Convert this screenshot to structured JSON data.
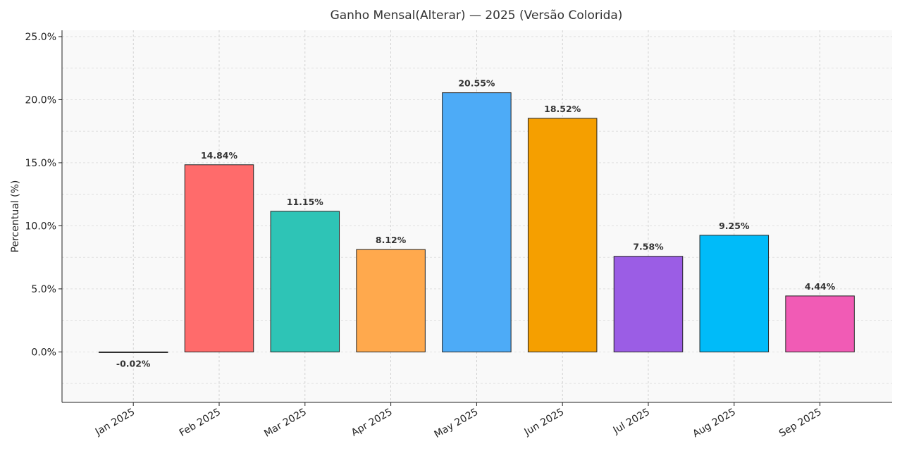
{
  "chart_data": {
    "type": "bar",
    "title": "Ganho Mensal(Alterar) — 2025 (Versão Colorida)",
    "xlabel": "",
    "ylabel": "Percentual (%)",
    "categories": [
      "Jan 2025",
      "Feb 2025",
      "Mar 2025",
      "Apr 2025",
      "May 2025",
      "Jun 2025",
      "Jul 2025",
      "Aug 2025",
      "Sep 2025"
    ],
    "values": [
      -0.02,
      14.84,
      11.15,
      8.12,
      20.55,
      18.52,
      7.58,
      9.25,
      4.44
    ],
    "data_labels": [
      "-0.02%",
      "14.84%",
      "11.15%",
      "8.12%",
      "20.55%",
      "18.52%",
      "7.58%",
      "9.25%",
      "4.44%"
    ],
    "colors": [
      "#4d4d4d",
      "#ff6b6b",
      "#2ec4b6",
      "#ffa94d",
      "#4dabf7",
      "#f59f00",
      "#9b5de5",
      "#00bbf9",
      "#f15bb5"
    ],
    "ylim": [
      -4,
      25.5
    ],
    "yticks": [
      0,
      5,
      10,
      15,
      20,
      25
    ],
    "ytick_labels": [
      "0.0%",
      "5.0%",
      "10.0%",
      "15.0%",
      "20.0%",
      "25.0%"
    ],
    "grid": true,
    "plot_background": "#f9f9f9"
  }
}
